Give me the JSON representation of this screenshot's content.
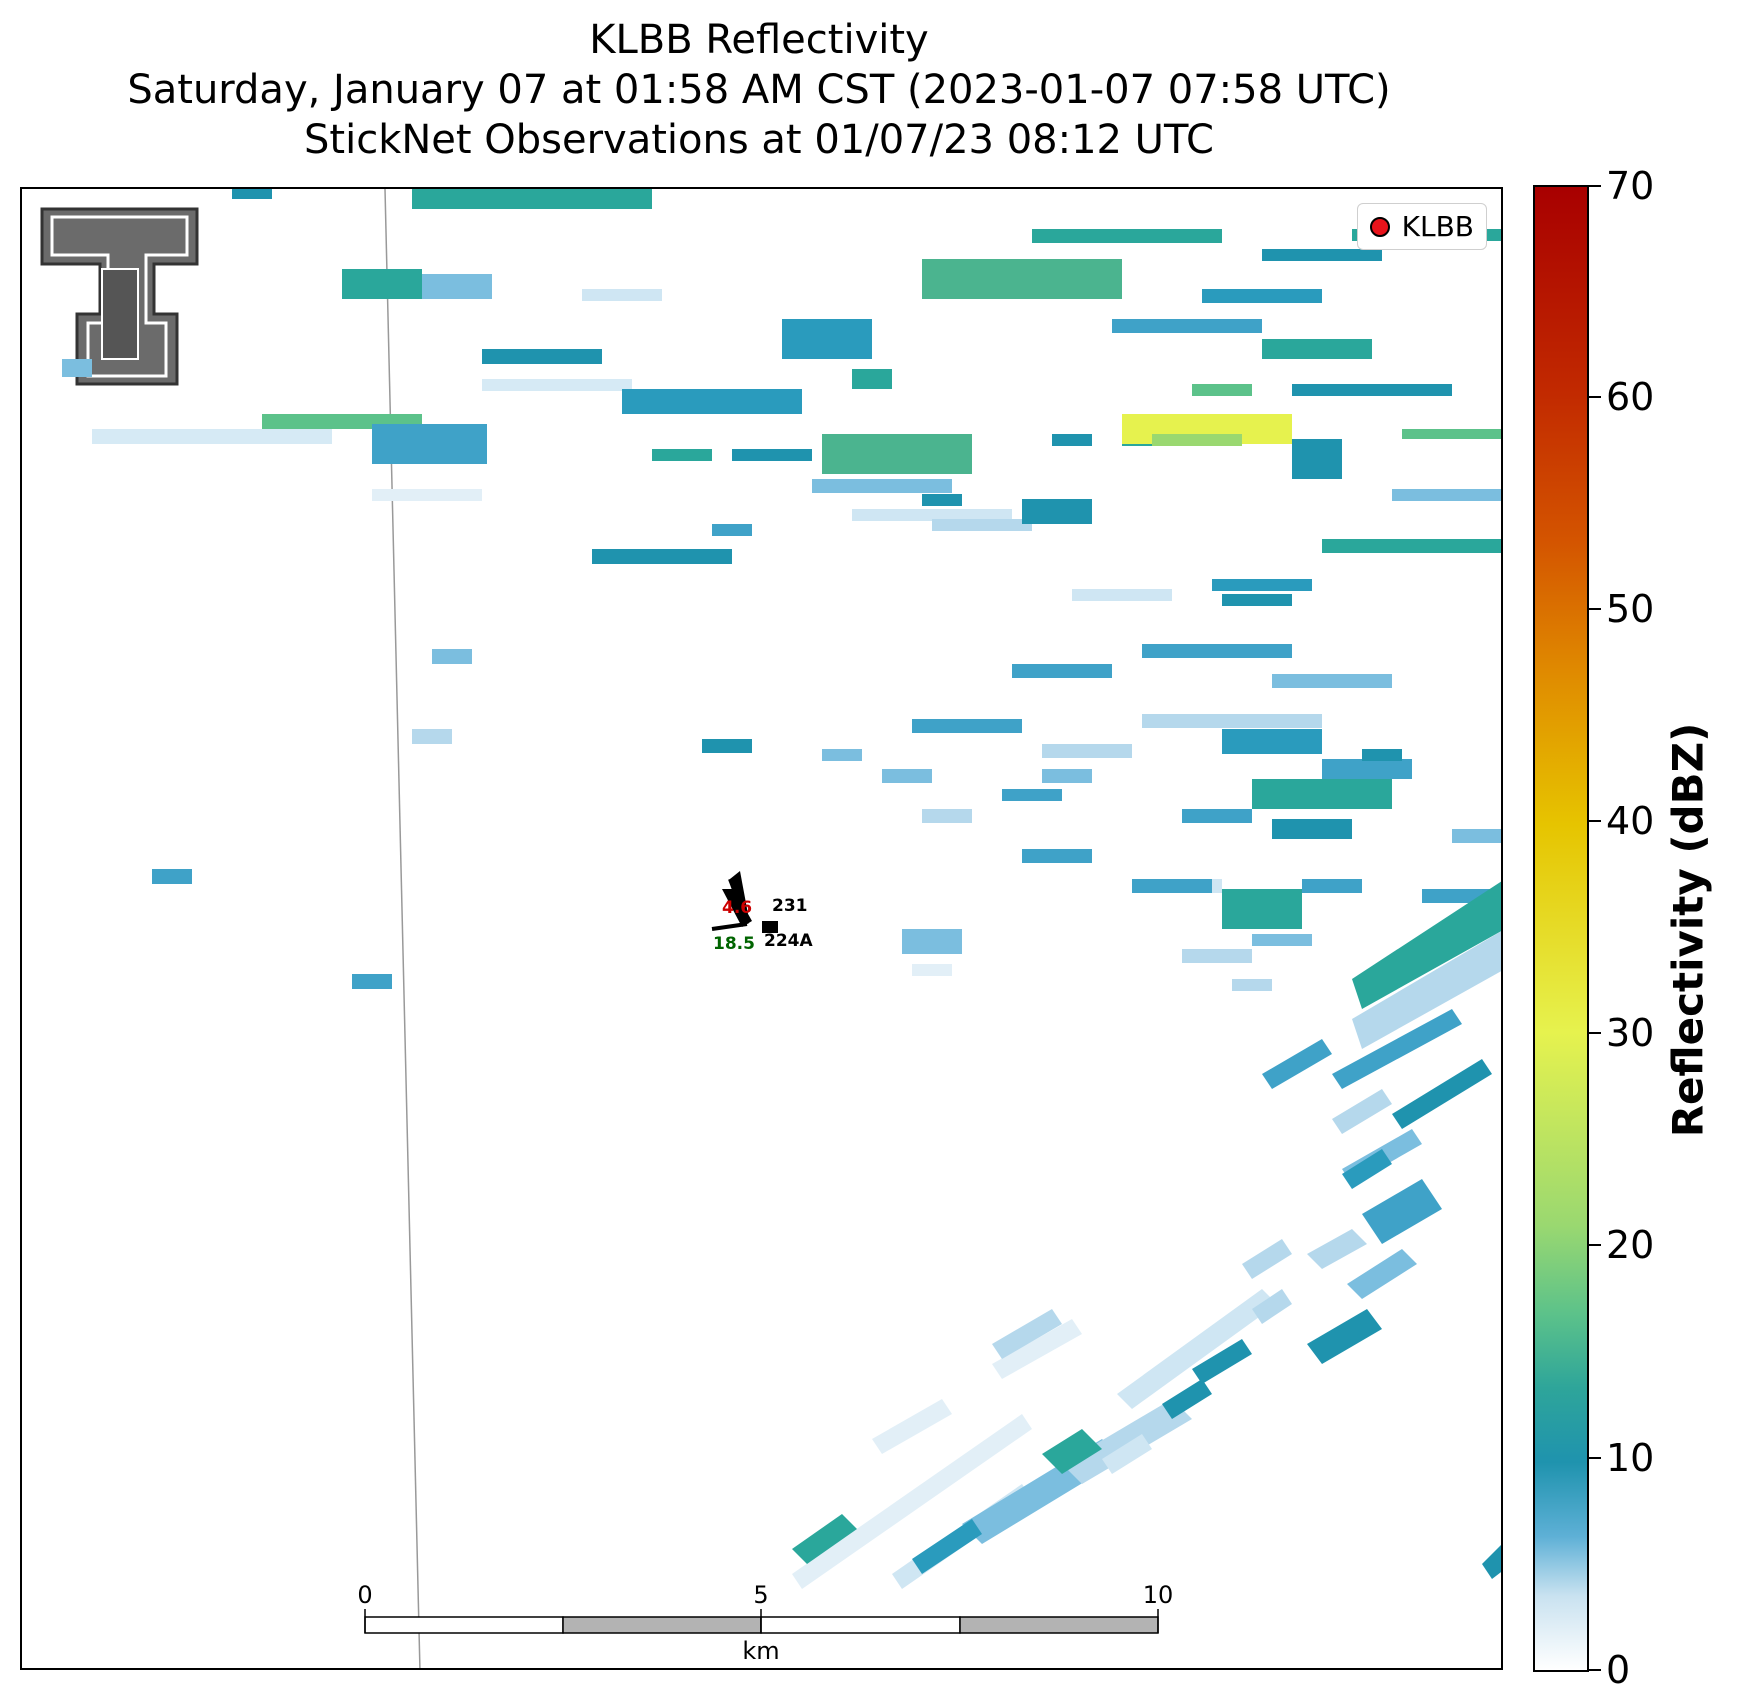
{
  "title": {
    "line1": "KLBB Reflectivity",
    "line2": "Saturday, January 07 at 01:58 AM CST (2023-01-07 07:58 UTC)",
    "line3": "StickNet Observations at 01/07/23 08:12 UTC"
  },
  "legend": {
    "label": "KLBB"
  },
  "colorbar": {
    "label": "Reflectivity (dBZ)",
    "ticks": [
      "0",
      "10",
      "20",
      "30",
      "40",
      "50",
      "60",
      "70"
    ],
    "range": [
      0,
      70
    ]
  },
  "scalebar": {
    "ticks": [
      "0",
      "5",
      "10"
    ],
    "unit": "km"
  },
  "stations": [
    {
      "id": "231",
      "temp": "4.6",
      "temp_color": "#cc0000"
    },
    {
      "id": "224A",
      "dewpoint": "18.5",
      "dewpoint_color": "#006400"
    }
  ],
  "colors": {
    "legend_marker": "#e8131b",
    "reflectivity_light": "#cfe6f3",
    "reflectivity_mid": "#1f93ae",
    "reflectivity_green": "#5cc28a",
    "reflectivity_yellow": "#e6f24e"
  }
}
